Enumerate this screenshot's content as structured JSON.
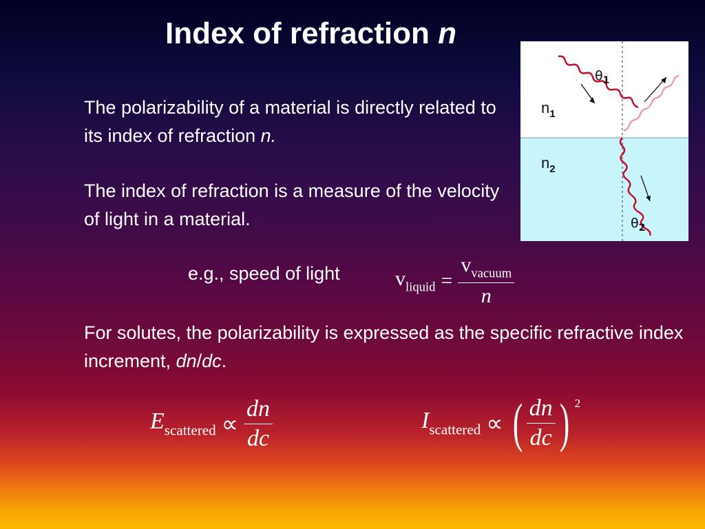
{
  "slide": {
    "title": "Index of refraction ",
    "title_var": "n",
    "para1_text": "The polarizability of a material is directly related to its index of refraction ",
    "para1_var": "n",
    "para1_end": ".",
    "para2_text": "The index of refraction is a measure of the velocity of light in a material.",
    "eg_text": "e.g., speed of light",
    "para3_text": "For solutes, the polarizability is expressed as the specific refractive index increment, ",
    "para3_var_dn": "dn",
    "para3_slash": "/",
    "para3_var_dc": "dc",
    "para3_end": "."
  },
  "equations": {
    "speed": {
      "lhs": "v",
      "lhs_sub": "liquid",
      "op": "=",
      "num": "v",
      "num_sub": "vacuum",
      "den": "n"
    },
    "e_scattered": {
      "lhs": "E",
      "lhs_sub": "scattered",
      "op": "∝",
      "num": "dn",
      "den": "dc"
    },
    "i_scattered": {
      "lhs": "I",
      "lhs_sub": "scattered",
      "op": "∝",
      "lparen": "(",
      "rparen": ")",
      "num": "dn",
      "den": "dc",
      "exponent": "2"
    }
  },
  "figure": {
    "label_n1": "n",
    "label_n1_sub": "1",
    "label_n2": "n",
    "label_n2_sub": "2",
    "label_theta1": "θ",
    "label_theta1_sub": "1",
    "label_theta2": "θ",
    "label_theta2_sub": "2",
    "colors": {
      "medium1": "#ffffff",
      "medium2": "#c8f4fc",
      "incident_wave": "#c8102e",
      "reflected_wave": "#f2a0a8",
      "normal_line": "#555555",
      "arrow": "#111111"
    }
  },
  "theme": {
    "gradient_top": "#000022",
    "gradient_bottom": "#fbb800",
    "text_color": "#ffffff"
  }
}
